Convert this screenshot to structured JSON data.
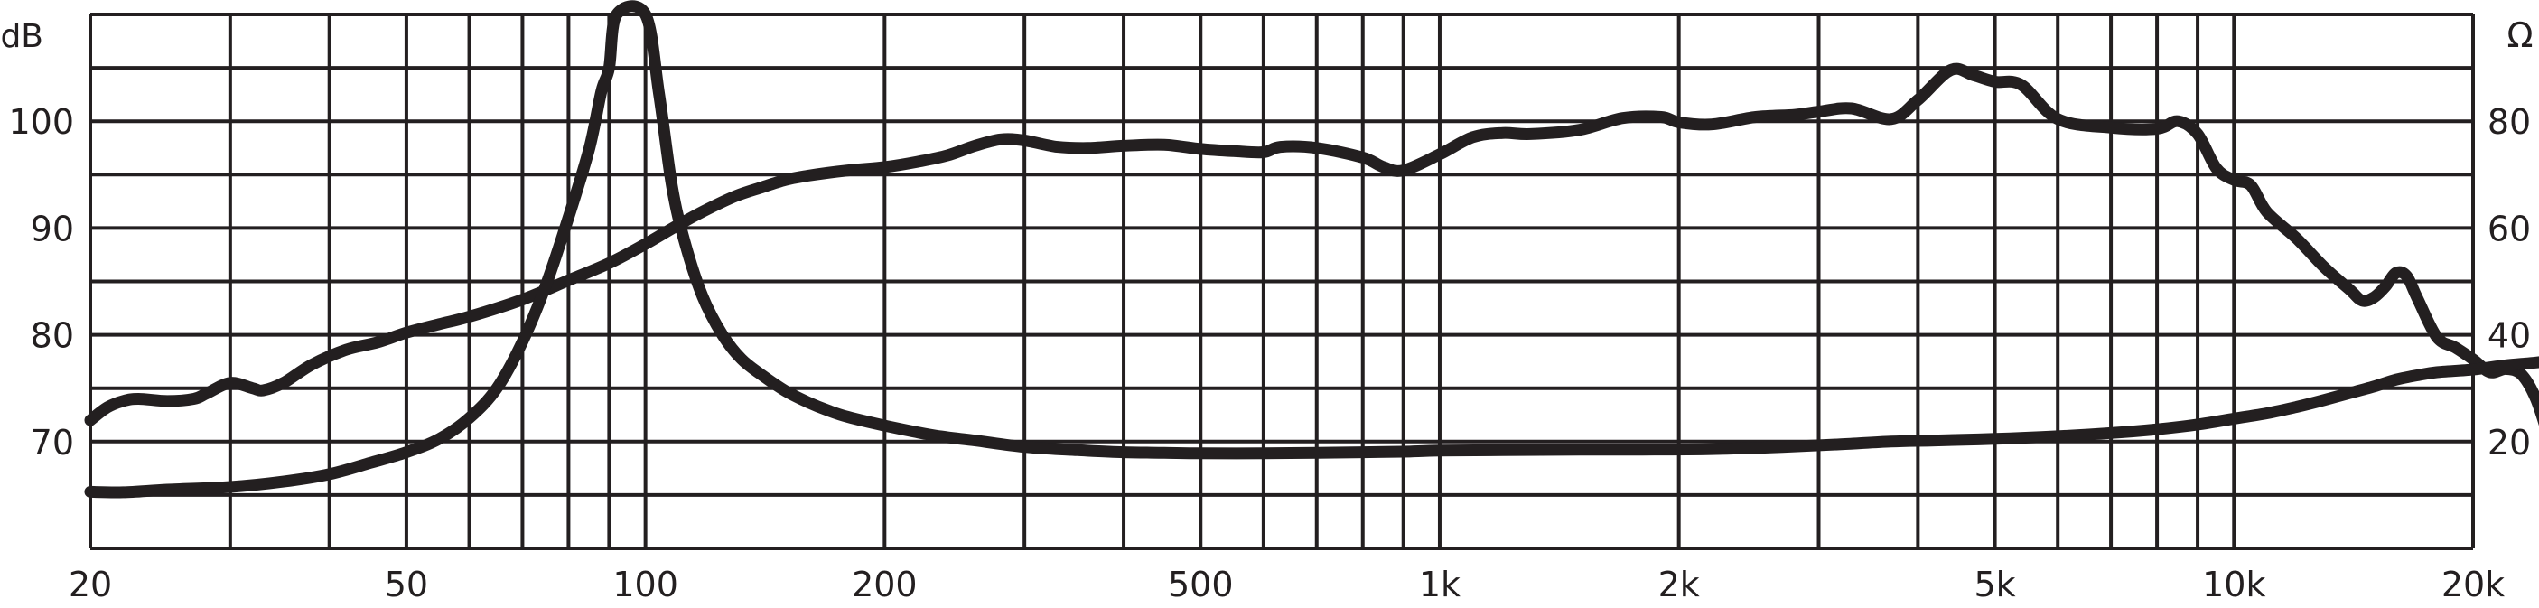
{
  "chart_data": {
    "type": "line",
    "x_scale": "log",
    "xlim": [
      20,
      20000
    ],
    "grid": true,
    "x_ticks": [
      {
        "value": 20,
        "label": "20"
      },
      {
        "value": 50,
        "label": "50"
      },
      {
        "value": 100,
        "label": "100"
      },
      {
        "value": 200,
        "label": "200"
      },
      {
        "value": 500,
        "label": "500"
      },
      {
        "value": 1000,
        "label": "1k"
      },
      {
        "value": 2000,
        "label": "2k"
      },
      {
        "value": 5000,
        "label": "5k"
      },
      {
        "value": 10000,
        "label": "10k"
      },
      {
        "value": 20000,
        "label": "20k"
      }
    ],
    "left_axis": {
      "unit": "dB",
      "ylim": [
        60,
        110
      ],
      "ticks": [
        {
          "value": 70,
          "label": "70"
        },
        {
          "value": 80,
          "label": "80"
        },
        {
          "value": 90,
          "label": "90"
        },
        {
          "value": 100,
          "label": "100"
        }
      ]
    },
    "right_axis": {
      "unit": "Ω",
      "ylim": [
        0,
        100
      ],
      "ticks": [
        {
          "value": 20,
          "label": "20"
        },
        {
          "value": 40,
          "label": "40"
        },
        {
          "value": 60,
          "label": "60"
        },
        {
          "value": 80,
          "label": "80"
        }
      ]
    },
    "series": [
      {
        "axis": "left",
        "points": [
          [
            20,
            72
          ],
          [
            21,
            73.2
          ],
          [
            22,
            73.8
          ],
          [
            23,
            74
          ],
          [
            25,
            73.8
          ],
          [
            27,
            74
          ],
          [
            28,
            74.5
          ],
          [
            30,
            75.5
          ],
          [
            32,
            75
          ],
          [
            33,
            74.8
          ],
          [
            35,
            75.5
          ],
          [
            38,
            77.2
          ],
          [
            42,
            78.6
          ],
          [
            46,
            79.3
          ],
          [
            50,
            80.2
          ],
          [
            55,
            81
          ],
          [
            60,
            81.7
          ],
          [
            70,
            83.3
          ],
          [
            80,
            85.1
          ],
          [
            90,
            86.7
          ],
          [
            100,
            88.5
          ],
          [
            110,
            90.3
          ],
          [
            120,
            91.8
          ],
          [
            130,
            93
          ],
          [
            140,
            93.8
          ],
          [
            150,
            94.5
          ],
          [
            160,
            94.9
          ],
          [
            180,
            95.4
          ],
          [
            200,
            95.7
          ],
          [
            220,
            96.2
          ],
          [
            240,
            96.8
          ],
          [
            260,
            97.7
          ],
          [
            280,
            98.3
          ],
          [
            300,
            98.2
          ],
          [
            330,
            97.6
          ],
          [
            360,
            97.5
          ],
          [
            400,
            97.7
          ],
          [
            450,
            97.8
          ],
          [
            500,
            97.4
          ],
          [
            550,
            97.2
          ],
          [
            600,
            97.1
          ],
          [
            630,
            97.6
          ],
          [
            700,
            97.5
          ],
          [
            800,
            96.6
          ],
          [
            850,
            95.7
          ],
          [
            900,
            95.4
          ],
          [
            1000,
            96.9
          ],
          [
            1100,
            98.5
          ],
          [
            1200,
            98.9
          ],
          [
            1300,
            98.8
          ],
          [
            1500,
            99.2
          ],
          [
            1700,
            100.3
          ],
          [
            1900,
            100.4
          ],
          [
            2000,
            99.9
          ],
          [
            2200,
            99.7
          ],
          [
            2500,
            100.4
          ],
          [
            2800,
            100.6
          ],
          [
            3000,
            100.9
          ],
          [
            3300,
            101.2
          ],
          [
            3700,
            100.2
          ],
          [
            4000,
            102
          ],
          [
            4400,
            104.8
          ],
          [
            4700,
            104.3
          ],
          [
            5000,
            103.7
          ],
          [
            5400,
            103.4
          ],
          [
            6000,
            100.2
          ],
          [
            7000,
            99.4
          ],
          [
            8000,
            99.3
          ],
          [
            8500,
            100
          ],
          [
            9000,
            98.8
          ],
          [
            9500,
            95.6
          ],
          [
            10000,
            94.5
          ],
          [
            10500,
            94
          ],
          [
            11000,
            91.5
          ],
          [
            12000,
            89
          ],
          [
            13000,
            86.3
          ],
          [
            14000,
            84.2
          ],
          [
            14500,
            83.2
          ],
          [
            15000,
            83.5
          ],
          [
            15500,
            84.5
          ],
          [
            16000,
            85.8
          ],
          [
            16500,
            85.5
          ],
          [
            17000,
            83.5
          ],
          [
            18000,
            79.8
          ],
          [
            19000,
            78.8
          ],
          [
            20000,
            77.7
          ],
          [
            21000,
            76.5
          ],
          [
            22000,
            76.8
          ],
          [
            23000,
            76.3
          ],
          [
            24000,
            74
          ],
          [
            25000,
            70
          ],
          [
            26000,
            66
          ]
        ]
      },
      {
        "axis": "right",
        "points": [
          [
            20,
            10.6
          ],
          [
            22,
            10.5
          ],
          [
            25,
            11
          ],
          [
            30,
            11.5
          ],
          [
            35,
            12.5
          ],
          [
            40,
            13.9
          ],
          [
            45,
            16
          ],
          [
            50,
            18
          ],
          [
            55,
            20.5
          ],
          [
            60,
            24.4
          ],
          [
            65,
            30
          ],
          [
            70,
            38.7
          ],
          [
            75,
            49.5
          ],
          [
            80,
            62
          ],
          [
            85,
            75
          ],
          [
            88,
            85.6
          ],
          [
            90,
            90
          ],
          [
            92,
            100
          ],
          [
            100,
            100
          ],
          [
            104,
            85.2
          ],
          [
            108,
            67.8
          ],
          [
            112,
            57.5
          ],
          [
            118,
            47.2
          ],
          [
            125,
            40
          ],
          [
            132,
            35.5
          ],
          [
            140,
            32.5
          ],
          [
            150,
            29.5
          ],
          [
            160,
            27.4
          ],
          [
            170,
            25.8
          ],
          [
            180,
            24.6
          ],
          [
            200,
            23
          ],
          [
            230,
            21.2
          ],
          [
            260,
            20.2
          ],
          [
            300,
            19
          ],
          [
            350,
            18.4
          ],
          [
            400,
            18
          ],
          [
            450,
            17.9
          ],
          [
            500,
            17.8
          ],
          [
            600,
            17.8
          ],
          [
            700,
            17.9
          ],
          [
            800,
            18
          ],
          [
            900,
            18.1
          ],
          [
            1000,
            18.3
          ],
          [
            1200,
            18.4
          ],
          [
            1500,
            18.5
          ],
          [
            1800,
            18.5
          ],
          [
            2200,
            18.6
          ],
          [
            2700,
            19
          ],
          [
            3200,
            19.5
          ],
          [
            3700,
            20
          ],
          [
            4200,
            20.2
          ],
          [
            5000,
            20.5
          ],
          [
            6000,
            21
          ],
          [
            7000,
            21.6
          ],
          [
            8000,
            22.3
          ],
          [
            9000,
            23.2
          ],
          [
            10000,
            24.3
          ],
          [
            11000,
            25.3
          ],
          [
            12000,
            26.5
          ],
          [
            13000,
            27.8
          ],
          [
            14000,
            29.1
          ],
          [
            15000,
            30.3
          ],
          [
            16000,
            31.6
          ],
          [
            17000,
            32.4
          ],
          [
            18000,
            33
          ],
          [
            20000,
            33.5
          ],
          [
            22000,
            34.3
          ],
          [
            24000,
            34.8
          ],
          [
            26000,
            35.5
          ]
        ]
      }
    ]
  }
}
